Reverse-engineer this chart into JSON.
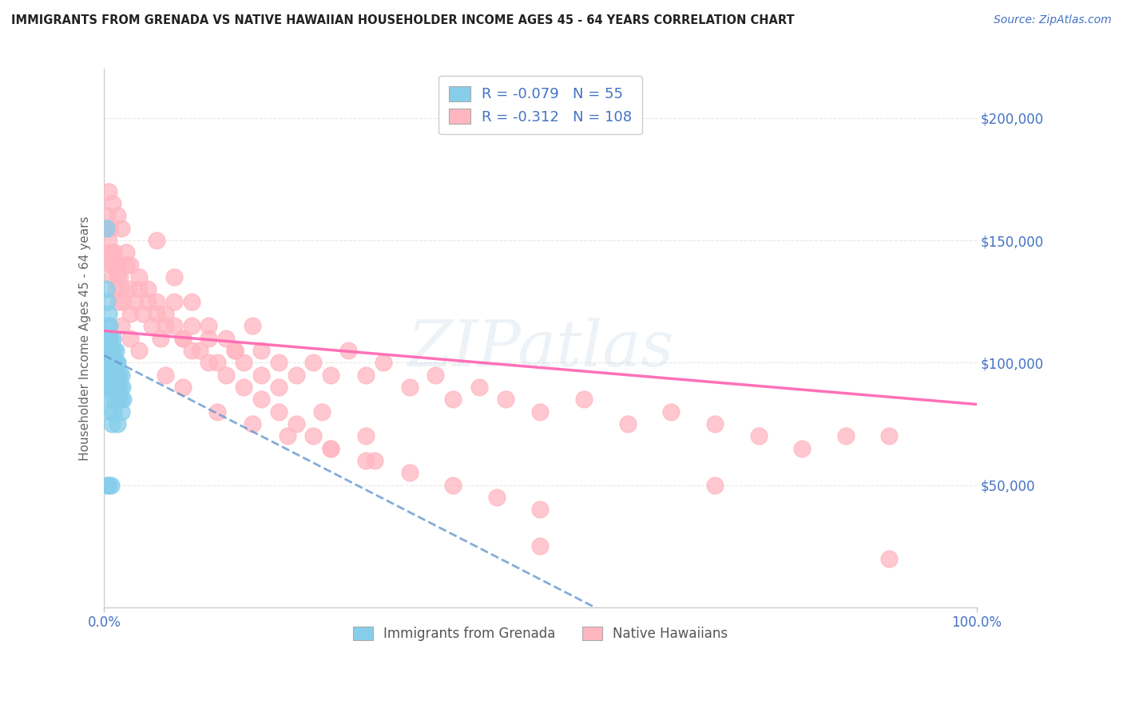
{
  "title": "IMMIGRANTS FROM GRENADA VS NATIVE HAWAIIAN HOUSEHOLDER INCOME AGES 45 - 64 YEARS CORRELATION CHART",
  "source": "Source: ZipAtlas.com",
  "ylabel": "Householder Income Ages 45 - 64 years",
  "xlim": [
    0.0,
    1.0
  ],
  "ylim": [
    0,
    220000
  ],
  "xtick_labels": [
    "0.0%",
    "100.0%"
  ],
  "ytick_labels": [
    "$50,000",
    "$100,000",
    "$150,000",
    "$200,000"
  ],
  "ytick_values": [
    50000,
    100000,
    150000,
    200000
  ],
  "legend_r1": "R = -0.079",
  "legend_n1": "N =  55",
  "legend_r2": "R = -0.312",
  "legend_n2": "N = 108",
  "color_blue": "#87CEEB",
  "color_pink": "#FFB6C1",
  "color_line_blue": "#6699CC",
  "color_line_pink": "#FF69B4",
  "color_title": "#333333",
  "color_source": "#4472C4",
  "color_axis_label": "#4472C4",
  "color_grid": "#E8E8E8",
  "background_color": "#FFFFFF",
  "watermark": "ZIPatlas",
  "blue_r": -0.079,
  "blue_n": 55,
  "pink_r": -0.312,
  "pink_n": 108,
  "blue_scatter_x": [
    0.002,
    0.002,
    0.003,
    0.003,
    0.003,
    0.004,
    0.004,
    0.004,
    0.004,
    0.005,
    0.005,
    0.005,
    0.005,
    0.006,
    0.006,
    0.006,
    0.007,
    0.007,
    0.007,
    0.008,
    0.008,
    0.008,
    0.009,
    0.009,
    0.01,
    0.01,
    0.01,
    0.011,
    0.011,
    0.012,
    0.012,
    0.013,
    0.013,
    0.014,
    0.014,
    0.015,
    0.015,
    0.016,
    0.016,
    0.017,
    0.018,
    0.019,
    0.02,
    0.021,
    0.022,
    0.003,
    0.005,
    0.008,
    0.01,
    0.012,
    0.007,
    0.009,
    0.011,
    0.015,
    0.02
  ],
  "blue_scatter_y": [
    155000,
    130000,
    125000,
    110000,
    100000,
    115000,
    105000,
    95000,
    90000,
    120000,
    110000,
    100000,
    90000,
    115000,
    105000,
    95000,
    110000,
    100000,
    90000,
    105000,
    95000,
    85000,
    100000,
    90000,
    110000,
    100000,
    90000,
    105000,
    95000,
    100000,
    90000,
    105000,
    95000,
    100000,
    90000,
    100000,
    90000,
    95000,
    85000,
    95000,
    90000,
    85000,
    95000,
    90000,
    85000,
    50000,
    50000,
    50000,
    95000,
    85000,
    80000,
    75000,
    80000,
    75000,
    80000
  ],
  "pink_scatter_x": [
    0.003,
    0.004,
    0.005,
    0.006,
    0.007,
    0.008,
    0.009,
    0.01,
    0.011,
    0.012,
    0.013,
    0.014,
    0.015,
    0.016,
    0.018,
    0.02,
    0.022,
    0.025,
    0.028,
    0.03,
    0.035,
    0.04,
    0.045,
    0.05,
    0.055,
    0.06,
    0.065,
    0.07,
    0.08,
    0.09,
    0.1,
    0.11,
    0.12,
    0.13,
    0.14,
    0.15,
    0.16,
    0.17,
    0.18,
    0.2,
    0.22,
    0.24,
    0.26,
    0.28,
    0.3,
    0.32,
    0.35,
    0.38,
    0.4,
    0.43,
    0.46,
    0.5,
    0.55,
    0.6,
    0.65,
    0.7,
    0.75,
    0.8,
    0.85,
    0.9,
    0.005,
    0.01,
    0.015,
    0.02,
    0.025,
    0.03,
    0.04,
    0.05,
    0.06,
    0.07,
    0.08,
    0.09,
    0.1,
    0.12,
    0.14,
    0.16,
    0.18,
    0.2,
    0.22,
    0.24,
    0.26,
    0.3,
    0.35,
    0.4,
    0.45,
    0.5,
    0.06,
    0.08,
    0.1,
    0.12,
    0.15,
    0.18,
    0.2,
    0.25,
    0.3,
    0.02,
    0.03,
    0.04,
    0.07,
    0.09,
    0.13,
    0.17,
    0.21,
    0.26,
    0.31,
    0.5,
    0.7,
    0.9
  ],
  "pink_scatter_y": [
    160000,
    155000,
    150000,
    145000,
    155000,
    140000,
    145000,
    135000,
    140000,
    145000,
    130000,
    140000,
    135000,
    125000,
    135000,
    130000,
    125000,
    140000,
    130000,
    120000,
    125000,
    130000,
    120000,
    125000,
    115000,
    120000,
    110000,
    115000,
    125000,
    110000,
    115000,
    105000,
    110000,
    100000,
    110000,
    105000,
    100000,
    115000,
    105000,
    100000,
    95000,
    100000,
    95000,
    105000,
    95000,
    100000,
    90000,
    95000,
    85000,
    90000,
    85000,
    80000,
    85000,
    75000,
    80000,
    75000,
    70000,
    65000,
    70000,
    70000,
    170000,
    165000,
    160000,
    155000,
    145000,
    140000,
    135000,
    130000,
    125000,
    120000,
    115000,
    110000,
    105000,
    100000,
    95000,
    90000,
    85000,
    80000,
    75000,
    70000,
    65000,
    60000,
    55000,
    50000,
    45000,
    40000,
    150000,
    135000,
    125000,
    115000,
    105000,
    95000,
    90000,
    80000,
    70000,
    115000,
    110000,
    105000,
    95000,
    90000,
    80000,
    75000,
    70000,
    65000,
    60000,
    25000,
    50000,
    20000
  ]
}
